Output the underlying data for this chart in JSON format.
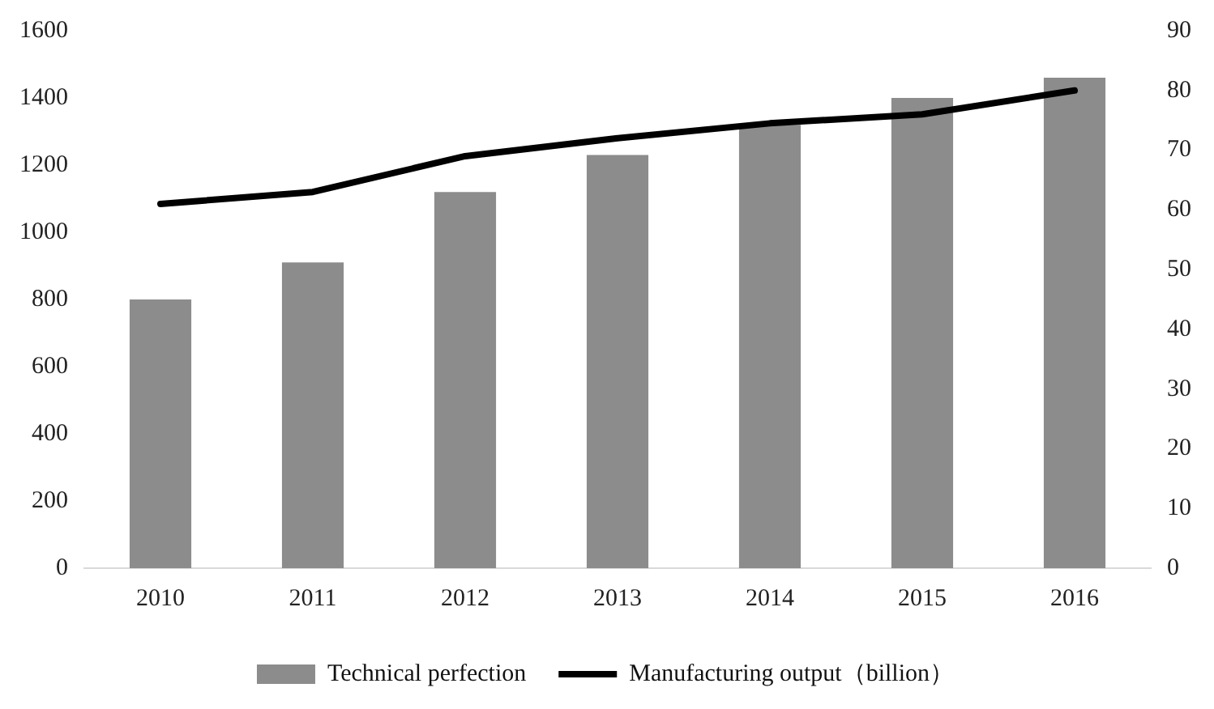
{
  "chart_data": {
    "type": "bar",
    "categories": [
      "2010",
      "2011",
      "2012",
      "2013",
      "2014",
      "2015",
      "2016"
    ],
    "series": [
      {
        "name": "Technical perfection",
        "color": "#8c8c8c",
        "values": [
          800,
          910,
          1120,
          1230,
          1320,
          1400,
          1460
        ]
      },
      {
        "name": "Manufacturing output（billion）",
        "type": "line",
        "axis": "y2",
        "color": "#000000",
        "values": [
          61,
          63,
          69,
          72,
          74.5,
          76,
          80
        ]
      }
    ],
    "ylim": [
      0,
      1600
    ],
    "yticks": [
      0,
      200,
      400,
      600,
      800,
      1000,
      1200,
      1400,
      1600
    ],
    "y2lim": [
      0,
      90
    ],
    "y2ticks": [
      0,
      10,
      20,
      30,
      40,
      50,
      60,
      70,
      80,
      90
    ],
    "grid": false,
    "legend": "bottom",
    "marker": "none",
    "line_style": "solid"
  }
}
